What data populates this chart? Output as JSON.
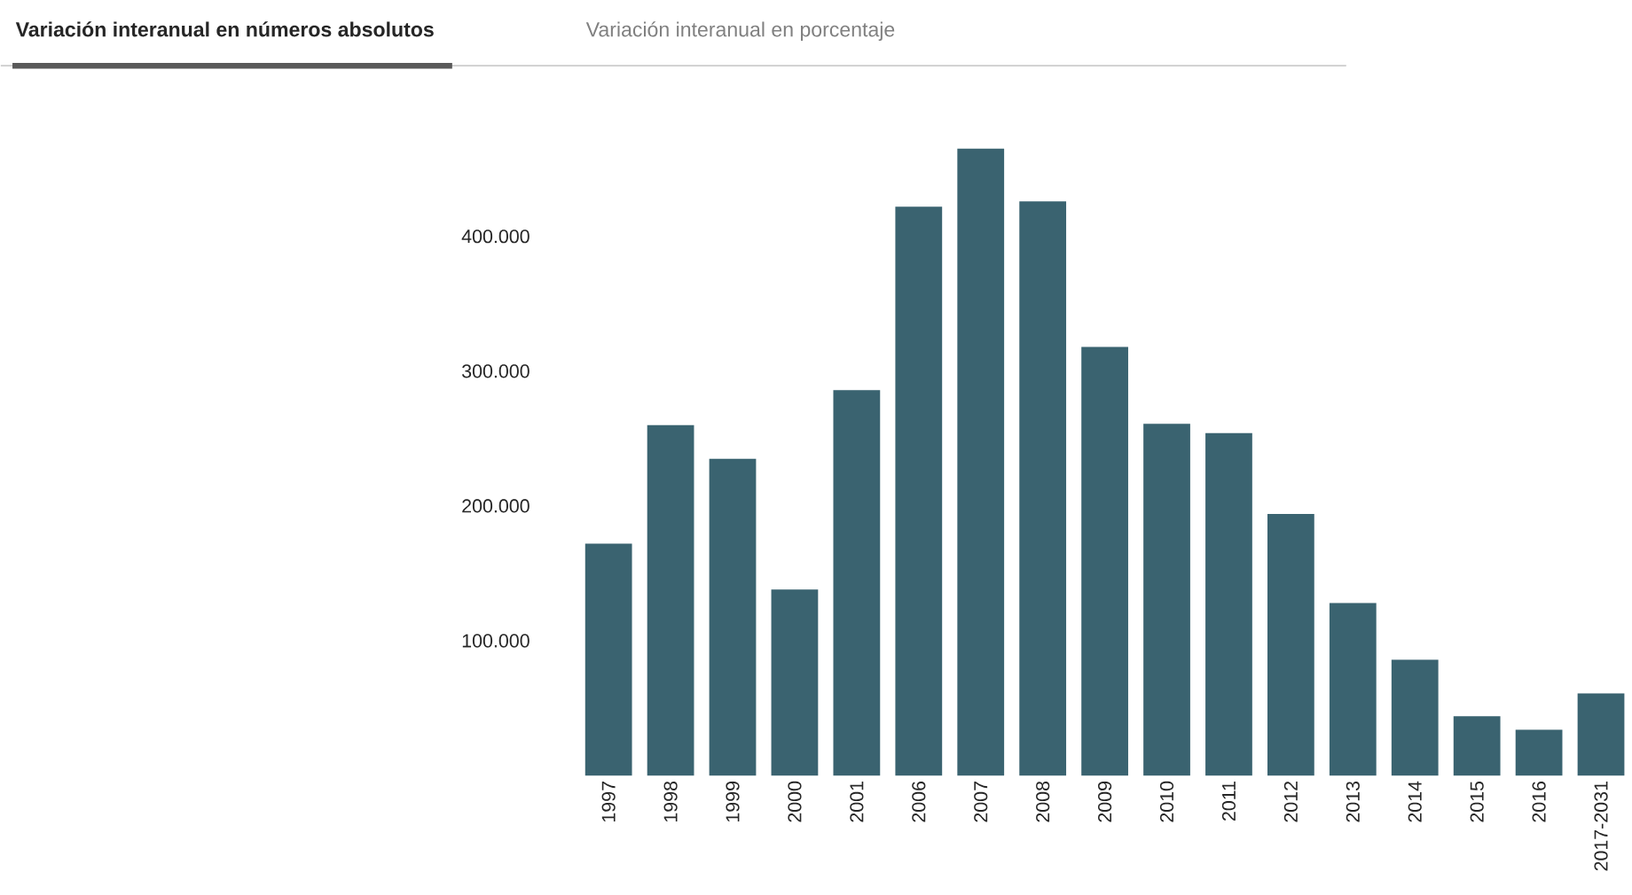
{
  "chart_data": {
    "type": "bar",
    "title": "Variación interanual en números absolutos",
    "subtitle": "Variación interanual en porcentaje",
    "categories": [
      "1997",
      "1998",
      "1999",
      "2000",
      "2001",
      "2006",
      "2007",
      "2008",
      "2009",
      "2010",
      "2011",
      "2012",
      "2013",
      "2014",
      "2015",
      "2016",
      "2017-2031"
    ],
    "values": [
      172000,
      260000,
      235000,
      138000,
      286000,
      422000,
      465000,
      426000,
      318000,
      261000,
      254000,
      194000,
      128000,
      86000,
      44000,
      34000,
      61000
    ],
    "color": "#3a6370",
    "ylim": [
      0,
      465000
    ],
    "yticks": [
      {
        "value": 100000,
        "label": "100.000"
      },
      {
        "value": 200000,
        "label": "200.000"
      },
      {
        "value": 300000,
        "label": "300.000"
      },
      {
        "value": 400000,
        "label": "400.000"
      }
    ]
  }
}
